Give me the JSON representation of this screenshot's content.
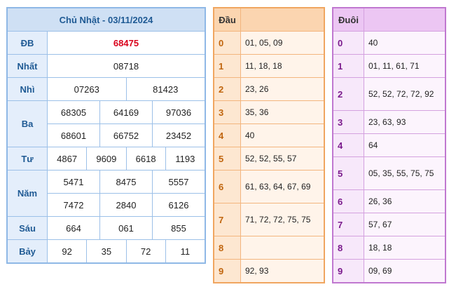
{
  "results": {
    "title": "Chủ Nhật - 03/11/2024",
    "prizes": [
      {
        "label": "ĐB",
        "lines": [
          [
            "68475"
          ]
        ],
        "special": true
      },
      {
        "label": "Nhất",
        "lines": [
          [
            "08718"
          ]
        ]
      },
      {
        "label": "Nhì",
        "lines": [
          [
            "07263",
            "81423"
          ]
        ]
      },
      {
        "label": "Ba",
        "lines": [
          [
            "68305",
            "64169",
            "97036"
          ],
          [
            "68601",
            "66752",
            "23452"
          ]
        ]
      },
      {
        "label": "Tư",
        "lines": [
          [
            "4867",
            "9609",
            "6618",
            "1193"
          ]
        ]
      },
      {
        "label": "Năm",
        "lines": [
          [
            "5471",
            "8475",
            "5557"
          ],
          [
            "7472",
            "2840",
            "6126"
          ]
        ]
      },
      {
        "label": "Sáu",
        "lines": [
          [
            "664",
            "061",
            "855"
          ]
        ]
      },
      {
        "label": "Bảy",
        "lines": [
          [
            "92",
            "35",
            "72",
            "11"
          ]
        ]
      }
    ]
  },
  "dau": {
    "title": "Đầu",
    "rows": [
      {
        "key": "0",
        "value": "01, 05, 09"
      },
      {
        "key": "1",
        "value": "11, 18, 18"
      },
      {
        "key": "2",
        "value": "23, 26"
      },
      {
        "key": "3",
        "value": "35, 36"
      },
      {
        "key": "4",
        "value": "40"
      },
      {
        "key": "5",
        "value": "52, 52, 55, 57"
      },
      {
        "key": "6",
        "value": "61, 63, 64, 67, 69"
      },
      {
        "key": "7",
        "value": "71, 72, 72, 75, 75"
      },
      {
        "key": "8",
        "value": ""
      },
      {
        "key": "9",
        "value": "92, 93"
      }
    ]
  },
  "duoi": {
    "title": "Đuôi",
    "rows": [
      {
        "key": "0",
        "value": "40"
      },
      {
        "key": "1",
        "value": "01, 11, 61, 71"
      },
      {
        "key": "2",
        "value": "52, 52, 72, 72, 92"
      },
      {
        "key": "3",
        "value": "23, 63, 93"
      },
      {
        "key": "4",
        "value": "64"
      },
      {
        "key": "5",
        "value": "05, 35, 55, 75, 75"
      },
      {
        "key": "6",
        "value": "26, 36"
      },
      {
        "key": "7",
        "value": "57, 67"
      },
      {
        "key": "8",
        "value": "18, 18"
      },
      {
        "key": "9",
        "value": "09, 69"
      }
    ]
  },
  "colors": {
    "special_prize": "#d9001b",
    "results_accent": "#1f5a94",
    "dau_accent": "#c0650e",
    "duoi_accent": "#7a1a8c"
  }
}
